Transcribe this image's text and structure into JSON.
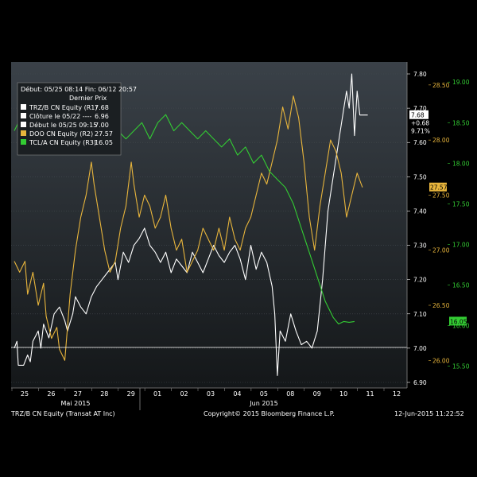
{
  "chart_data": {
    "type": "line",
    "legend": {
      "header": "Début: 05/25 08:14 Fin: 06/12 20:57",
      "column_header": "Dernier Prix",
      "items": [
        {
          "label": "TRZ/B CN Equity (R1)",
          "value": "7.68",
          "color": "#ffffff"
        },
        {
          "label": "Clôture le 05/22 ----",
          "value": "6.96",
          "color": "#ffffff"
        },
        {
          "label": "Début le 05/25 09:15",
          "value": "7.00",
          "color": "#ffffff"
        },
        {
          "label": "DOO CN Equity (R2)",
          "value": "27.57",
          "color": "#e8b53c"
        },
        {
          "label": "TCL/A CN Equity (R3)",
          "value": "16.05",
          "color": "#33cc33"
        }
      ]
    },
    "x": {
      "tick_labels": [
        "25",
        "26",
        "27",
        "28",
        "29",
        "01",
        "02",
        "03",
        "04",
        "05",
        "08",
        "09",
        "10",
        "11",
        "12"
      ],
      "month_labels": [
        "Mai 2015",
        "Jun 2015"
      ]
    },
    "axes": {
      "R1": {
        "color": "#ffffff",
        "min": 6.9,
        "max": 7.8,
        "ticks": [
          "7.80",
          "7.70",
          "7.60",
          "7.50",
          "7.40",
          "7.30",
          "7.20",
          "7.10",
          "7.00",
          "6.90"
        ]
      },
      "R2": {
        "color": "#e8b53c",
        "min": 25.8,
        "max": 28.6,
        "ticks": [
          "28.50",
          "28.00",
          "27.50",
          "27.00",
          "26.50",
          "26.00"
        ]
      },
      "R3": {
        "color": "#33cc33",
        "min": 15.3,
        "max": 19.1,
        "ticks": [
          "19.00",
          "18.50",
          "18.00",
          "17.50",
          "17.00",
          "16.50",
          "16.00",
          "15.50"
        ]
      }
    },
    "last_value_tags": {
      "trz": "7.68",
      "trz_change": "+0.68",
      "trz_pct": "9.71%",
      "doo": "27.57",
      "tcl": "16.05"
    },
    "series": [
      {
        "name": "TRZ/B CN Equity",
        "axis": "R1",
        "color": "#ffffff",
        "points": [
          [
            0,
            7.0
          ],
          [
            0.1,
            7.02
          ],
          [
            0.15,
            6.95
          ],
          [
            0.35,
            6.95
          ],
          [
            0.5,
            6.98
          ],
          [
            0.6,
            6.96
          ],
          [
            0.7,
            7.02
          ],
          [
            0.9,
            7.05
          ],
          [
            1.0,
            7.0
          ],
          [
            1.1,
            7.07
          ],
          [
            1.3,
            7.03
          ],
          [
            1.5,
            7.1
          ],
          [
            1.7,
            7.12
          ],
          [
            1.9,
            7.08
          ],
          [
            2.0,
            7.05
          ],
          [
            2.2,
            7.1
          ],
          [
            2.3,
            7.15
          ],
          [
            2.5,
            7.12
          ],
          [
            2.7,
            7.1
          ],
          [
            2.9,
            7.15
          ],
          [
            3.1,
            7.18
          ],
          [
            3.3,
            7.2
          ],
          [
            3.5,
            7.22
          ],
          [
            3.8,
            7.25
          ],
          [
            3.9,
            7.2
          ],
          [
            4.1,
            7.28
          ],
          [
            4.3,
            7.25
          ],
          [
            4.5,
            7.3
          ],
          [
            4.7,
            7.32
          ],
          [
            4.9,
            7.35
          ],
          [
            5.1,
            7.3
          ],
          [
            5.3,
            7.28
          ],
          [
            5.5,
            7.25
          ],
          [
            5.7,
            7.28
          ],
          [
            5.9,
            7.22
          ],
          [
            6.1,
            7.26
          ],
          [
            6.3,
            7.24
          ],
          [
            6.5,
            7.22
          ],
          [
            6.7,
            7.28
          ],
          [
            6.9,
            7.25
          ],
          [
            7.1,
            7.22
          ],
          [
            7.3,
            7.26
          ],
          [
            7.5,
            7.3
          ],
          [
            7.7,
            7.27
          ],
          [
            7.9,
            7.25
          ],
          [
            8.1,
            7.28
          ],
          [
            8.3,
            7.3
          ],
          [
            8.5,
            7.26
          ],
          [
            8.7,
            7.2
          ],
          [
            8.9,
            7.3
          ],
          [
            9.1,
            7.23
          ],
          [
            9.3,
            7.28
          ],
          [
            9.5,
            7.25
          ],
          [
            9.7,
            7.18
          ],
          [
            9.8,
            7.1
          ],
          [
            9.9,
            6.92
          ],
          [
            10.0,
            7.05
          ],
          [
            10.2,
            7.02
          ],
          [
            10.4,
            7.1
          ],
          [
            10.6,
            7.05
          ],
          [
            10.8,
            7.01
          ],
          [
            11.0,
            7.02
          ],
          [
            11.2,
            7.0
          ],
          [
            11.4,
            7.05
          ],
          [
            11.6,
            7.2
          ],
          [
            11.8,
            7.4
          ],
          [
            12.0,
            7.5
          ],
          [
            12.2,
            7.6
          ],
          [
            12.4,
            7.7
          ],
          [
            12.5,
            7.75
          ],
          [
            12.6,
            7.7
          ],
          [
            12.7,
            7.8
          ],
          [
            12.8,
            7.62
          ],
          [
            12.9,
            7.75
          ],
          [
            13.0,
            7.68
          ],
          [
            13.3,
            7.68
          ]
        ]
      },
      {
        "name": "DOO CN Equity",
        "axis": "R2",
        "color": "#e8b53c",
        "points": [
          [
            0,
            26.9
          ],
          [
            0.2,
            26.8
          ],
          [
            0.4,
            26.9
          ],
          [
            0.5,
            26.6
          ],
          [
            0.7,
            26.8
          ],
          [
            0.9,
            26.5
          ],
          [
            1.1,
            26.7
          ],
          [
            1.2,
            26.4
          ],
          [
            1.4,
            26.2
          ],
          [
            1.6,
            26.3
          ],
          [
            1.7,
            26.1
          ],
          [
            1.9,
            26.0
          ],
          [
            2.0,
            26.3
          ],
          [
            2.1,
            26.6
          ],
          [
            2.3,
            27.0
          ],
          [
            2.5,
            27.3
          ],
          [
            2.7,
            27.5
          ],
          [
            2.9,
            27.8
          ],
          [
            3.0,
            27.6
          ],
          [
            3.2,
            27.3
          ],
          [
            3.4,
            27.0
          ],
          [
            3.6,
            26.8
          ],
          [
            3.8,
            26.9
          ],
          [
            4.0,
            27.2
          ],
          [
            4.2,
            27.4
          ],
          [
            4.4,
            27.8
          ],
          [
            4.5,
            27.6
          ],
          [
            4.7,
            27.3
          ],
          [
            4.9,
            27.5
          ],
          [
            5.1,
            27.4
          ],
          [
            5.3,
            27.2
          ],
          [
            5.5,
            27.3
          ],
          [
            5.7,
            27.5
          ],
          [
            5.9,
            27.2
          ],
          [
            6.1,
            27.0
          ],
          [
            6.3,
            27.1
          ],
          [
            6.5,
            26.8
          ],
          [
            6.7,
            26.9
          ],
          [
            6.9,
            27.0
          ],
          [
            7.1,
            27.2
          ],
          [
            7.3,
            27.1
          ],
          [
            7.5,
            27.0
          ],
          [
            7.7,
            27.2
          ],
          [
            7.9,
            27.0
          ],
          [
            8.1,
            27.3
          ],
          [
            8.3,
            27.1
          ],
          [
            8.5,
            27.0
          ],
          [
            8.7,
            27.2
          ],
          [
            8.9,
            27.3
          ],
          [
            9.1,
            27.5
          ],
          [
            9.3,
            27.7
          ],
          [
            9.5,
            27.6
          ],
          [
            9.7,
            27.8
          ],
          [
            9.9,
            28.0
          ],
          [
            10.1,
            28.3
          ],
          [
            10.3,
            28.1
          ],
          [
            10.5,
            28.4
          ],
          [
            10.7,
            28.2
          ],
          [
            10.9,
            27.8
          ],
          [
            11.1,
            27.3
          ],
          [
            11.3,
            27.0
          ],
          [
            11.5,
            27.4
          ],
          [
            11.7,
            27.7
          ],
          [
            11.9,
            28.0
          ],
          [
            12.1,
            27.9
          ],
          [
            12.3,
            27.7
          ],
          [
            12.5,
            27.3
          ],
          [
            12.7,
            27.5
          ],
          [
            12.9,
            27.7
          ],
          [
            13.1,
            27.57
          ]
        ]
      },
      {
        "name": "TCL/A CN Equity",
        "axis": "R3",
        "color": "#33cc33",
        "points": [
          [
            0,
            18.4
          ],
          [
            0.3,
            18.6
          ],
          [
            0.5,
            18.5
          ],
          [
            0.7,
            18.7
          ],
          [
            1.0,
            18.5
          ],
          [
            1.2,
            18.6
          ],
          [
            1.5,
            18.4
          ],
          [
            1.8,
            18.3
          ],
          [
            2.1,
            18.4
          ],
          [
            2.4,
            18.2
          ],
          [
            2.7,
            18.3
          ],
          [
            3.0,
            18.2
          ],
          [
            3.3,
            18.4
          ],
          [
            3.6,
            18.5
          ],
          [
            3.9,
            18.4
          ],
          [
            4.2,
            18.3
          ],
          [
            4.5,
            18.4
          ],
          [
            4.8,
            18.5
          ],
          [
            5.1,
            18.3
          ],
          [
            5.4,
            18.5
          ],
          [
            5.7,
            18.6
          ],
          [
            6.0,
            18.4
          ],
          [
            6.3,
            18.5
          ],
          [
            6.6,
            18.4
          ],
          [
            6.9,
            18.3
          ],
          [
            7.2,
            18.4
          ],
          [
            7.5,
            18.3
          ],
          [
            7.8,
            18.2
          ],
          [
            8.1,
            18.3
          ],
          [
            8.4,
            18.1
          ],
          [
            8.7,
            18.2
          ],
          [
            9.0,
            18.0
          ],
          [
            9.3,
            18.1
          ],
          [
            9.6,
            17.9
          ],
          [
            9.9,
            17.8
          ],
          [
            10.2,
            17.7
          ],
          [
            10.5,
            17.5
          ],
          [
            10.8,
            17.2
          ],
          [
            11.1,
            16.9
          ],
          [
            11.4,
            16.6
          ],
          [
            11.7,
            16.3
          ],
          [
            12.0,
            16.1
          ],
          [
            12.2,
            16.02
          ],
          [
            12.4,
            16.05
          ],
          [
            12.6,
            16.04
          ],
          [
            12.8,
            16.05
          ]
        ]
      }
    ]
  },
  "footer": {
    "left": "TRZ/B CN Equity (Transat AT Inc)",
    "center": "Copyright© 2015 Bloomberg Finance L.P.",
    "right": "12-Jun-2015 11:22:52"
  }
}
